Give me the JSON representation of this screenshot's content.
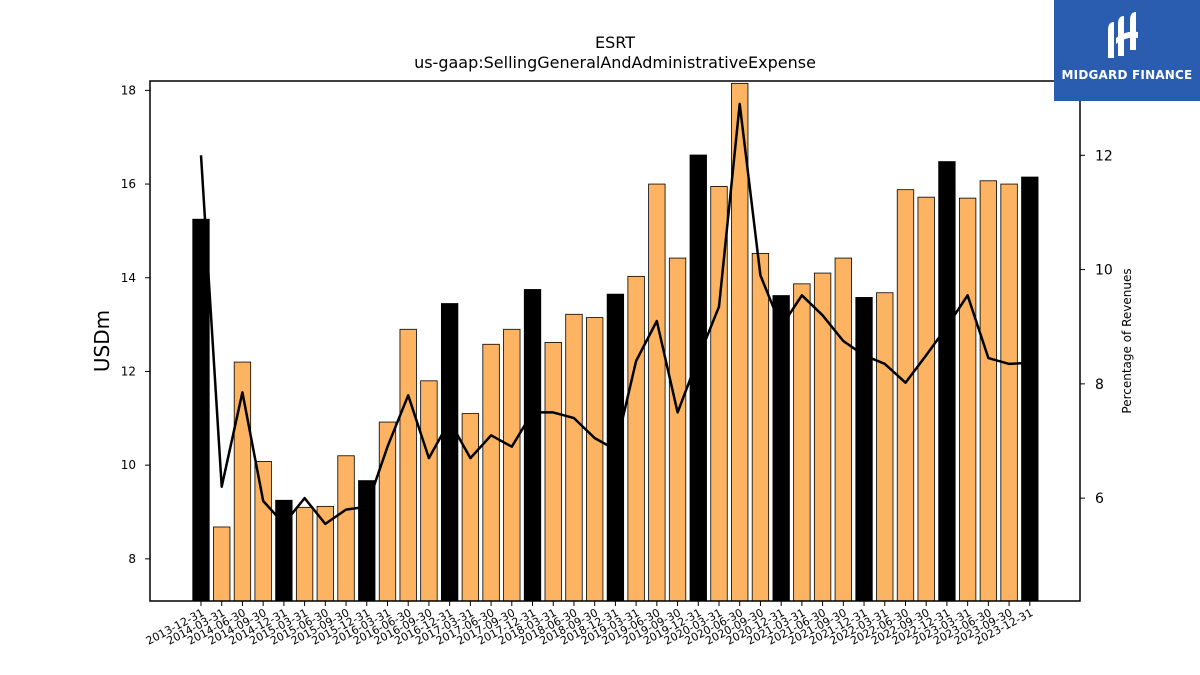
{
  "logo": {
    "text": "MIDGARD FINANCE",
    "icon": "midgard-logo-icon",
    "background": "#2a5db0"
  },
  "chart_data": {
    "type": "bar",
    "title": "ESRT",
    "subtitle": "us-gaap:SellingGeneralAndAdministrativeExpense",
    "ylabel": "USDm",
    "y2label": "Percentage of Revenues",
    "ylim": [
      7.1,
      18.2
    ],
    "y2lim": [
      4.2,
      13.3
    ],
    "yticks": [
      8,
      10,
      12,
      14,
      16,
      18
    ],
    "y2ticks": [
      6,
      8,
      10,
      12
    ],
    "colors": {
      "quarter": "#fdb462",
      "annual": "#000000",
      "line": "#000000"
    },
    "categories": [
      "2013-12-31",
      "2014-03-31",
      "2014-06-30",
      "2014-09-30",
      "2014-12-31",
      "2015-03-31",
      "2015-06-30",
      "2015-09-30",
      "2015-12-31",
      "2016-03-31",
      "2016-06-30",
      "2016-09-30",
      "2016-12-31",
      "2017-03-31",
      "2017-06-30",
      "2017-09-30",
      "2017-12-31",
      "2018-03-31",
      "2018-06-30",
      "2018-09-30",
      "2018-12-31",
      "2019-03-31",
      "2019-06-30",
      "2019-09-30",
      "2019-12-31",
      "2020-03-31",
      "2020-06-30",
      "2020-09-30",
      "2020-12-31",
      "2021-03-31",
      "2021-06-30",
      "2021-09-30",
      "2021-12-31",
      "2022-03-31",
      "2022-06-30",
      "2022-09-30",
      "2022-12-31",
      "2023-03-31",
      "2023-06-30",
      "2023-09-30",
      "2023-12-31"
    ],
    "series": [
      {
        "type": "bar",
        "values": [
          15.25,
          8.68,
          12.2,
          10.08,
          9.25,
          9.1,
          9.12,
          10.2,
          9.67,
          10.92,
          12.9,
          11.8,
          13.45,
          11.1,
          12.58,
          12.9,
          13.75,
          12.62,
          13.22,
          13.15,
          13.65,
          14.03,
          16.0,
          14.42,
          16.62,
          15.95,
          18.15,
          14.52,
          13.62,
          13.87,
          14.1,
          14.42,
          13.58,
          13.68,
          15.88,
          15.72,
          16.48,
          15.7,
          16.07,
          16.0,
          16.15
        ],
        "annual": [
          true,
          false,
          false,
          false,
          true,
          false,
          false,
          false,
          true,
          false,
          false,
          false,
          true,
          false,
          false,
          false,
          true,
          false,
          false,
          false,
          true,
          false,
          false,
          false,
          true,
          false,
          false,
          false,
          true,
          false,
          false,
          false,
          true,
          false,
          false,
          false,
          true,
          false,
          false,
          false,
          true
        ]
      },
      {
        "type": "line",
        "axis": "right",
        "values": [
          12.0,
          6.2,
          7.85,
          5.95,
          5.55,
          6.0,
          5.55,
          5.8,
          5.85,
          6.9,
          7.8,
          6.7,
          7.35,
          6.7,
          7.1,
          6.9,
          7.5,
          7.5,
          7.4,
          7.05,
          6.85,
          8.4,
          9.1,
          7.5,
          8.45,
          9.35,
          12.9,
          9.9,
          9.0,
          9.55,
          9.2,
          8.75,
          8.5,
          8.35,
          8.02,
          8.5,
          9.0,
          9.55,
          8.45,
          8.35,
          8.37
        ]
      }
    ]
  }
}
